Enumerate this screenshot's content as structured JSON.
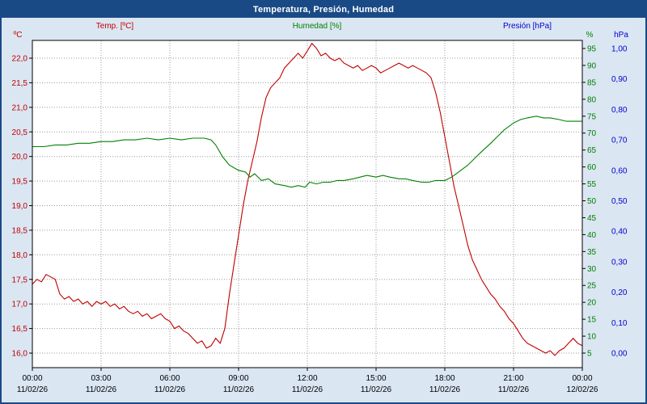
{
  "window": {
    "title": "Temperatura, Presión, Humedad"
  },
  "chart_data": {
    "type": "line",
    "title": "Temperatura, Presión, Humedad",
    "grid": true,
    "legend_position": "top",
    "x_axis": {
      "hours_min": 0,
      "hours_max": 24,
      "tick_step_hours": 3,
      "tick_labels": [
        "00:00",
        "03:00",
        "06:00",
        "09:00",
        "12:00",
        "15:00",
        "18:00",
        "21:00",
        "00:00"
      ],
      "date_labels": [
        "11/02/26",
        "11/02/26",
        "11/02/26",
        "11/02/26",
        "11/02/26",
        "11/02/26",
        "11/02/26",
        "11/02/26",
        "12/02/26"
      ]
    },
    "axes": {
      "temp": {
        "unit": "ºC",
        "legend": "Temp. [ºC]",
        "color": "#c00000",
        "min": 16.0,
        "max": 22.0,
        "step": 0.5,
        "decimals": 1,
        "side": "left"
      },
      "humidity": {
        "unit": "%",
        "legend": "Humedad [%]",
        "color": "#008000",
        "min": 5,
        "max": 95,
        "step": 5,
        "decimals": 0,
        "side": "right"
      },
      "pressure": {
        "unit": "hPa",
        "legend": "Presión [hPa]",
        "color": "#0000cc",
        "min": 0.0,
        "max": 1.0,
        "step": 0.1,
        "decimals": 2,
        "side": "far-right"
      }
    },
    "series": [
      {
        "name": "Temp. [ºC]",
        "axis": "temp",
        "color": "#c00000",
        "points": [
          [
            0,
            17.4
          ],
          [
            0.2,
            17.5
          ],
          [
            0.4,
            17.45
          ],
          [
            0.6,
            17.6
          ],
          [
            0.8,
            17.55
          ],
          [
            1.0,
            17.5
          ],
          [
            1.2,
            17.2
          ],
          [
            1.4,
            17.1
          ],
          [
            1.6,
            17.15
          ],
          [
            1.8,
            17.05
          ],
          [
            2.0,
            17.1
          ],
          [
            2.2,
            17.0
          ],
          [
            2.4,
            17.05
          ],
          [
            2.6,
            16.95
          ],
          [
            2.8,
            17.05
          ],
          [
            3.0,
            17.0
          ],
          [
            3.2,
            17.05
          ],
          [
            3.4,
            16.95
          ],
          [
            3.6,
            17.0
          ],
          [
            3.8,
            16.9
          ],
          [
            4.0,
            16.95
          ],
          [
            4.2,
            16.85
          ],
          [
            4.4,
            16.8
          ],
          [
            4.6,
            16.85
          ],
          [
            4.8,
            16.75
          ],
          [
            5.0,
            16.8
          ],
          [
            5.2,
            16.7
          ],
          [
            5.4,
            16.75
          ],
          [
            5.6,
            16.8
          ],
          [
            5.8,
            16.7
          ],
          [
            6.0,
            16.65
          ],
          [
            6.2,
            16.5
          ],
          [
            6.4,
            16.55
          ],
          [
            6.6,
            16.45
          ],
          [
            6.8,
            16.4
          ],
          [
            7.0,
            16.3
          ],
          [
            7.2,
            16.2
          ],
          [
            7.4,
            16.25
          ],
          [
            7.6,
            16.1
          ],
          [
            7.8,
            16.15
          ],
          [
            8.0,
            16.3
          ],
          [
            8.2,
            16.2
          ],
          [
            8.4,
            16.5
          ],
          [
            8.6,
            17.2
          ],
          [
            8.8,
            17.8
          ],
          [
            9.0,
            18.4
          ],
          [
            9.2,
            19.0
          ],
          [
            9.4,
            19.5
          ],
          [
            9.6,
            19.9
          ],
          [
            9.8,
            20.3
          ],
          [
            10.0,
            20.8
          ],
          [
            10.2,
            21.2
          ],
          [
            10.4,
            21.4
          ],
          [
            10.6,
            21.5
          ],
          [
            10.8,
            21.6
          ],
          [
            11.0,
            21.8
          ],
          [
            11.2,
            21.9
          ],
          [
            11.4,
            22.0
          ],
          [
            11.6,
            22.1
          ],
          [
            11.8,
            22.0
          ],
          [
            12.0,
            22.15
          ],
          [
            12.2,
            22.3
          ],
          [
            12.4,
            22.2
          ],
          [
            12.6,
            22.05
          ],
          [
            12.8,
            22.1
          ],
          [
            13.0,
            22.0
          ],
          [
            13.2,
            21.95
          ],
          [
            13.4,
            22.0
          ],
          [
            13.6,
            21.9
          ],
          [
            13.8,
            21.85
          ],
          [
            14.0,
            21.8
          ],
          [
            14.2,
            21.85
          ],
          [
            14.4,
            21.75
          ],
          [
            14.6,
            21.8
          ],
          [
            14.8,
            21.85
          ],
          [
            15.0,
            21.8
          ],
          [
            15.2,
            21.7
          ],
          [
            15.4,
            21.75
          ],
          [
            15.6,
            21.8
          ],
          [
            15.8,
            21.85
          ],
          [
            16.0,
            21.9
          ],
          [
            16.2,
            21.85
          ],
          [
            16.4,
            21.8
          ],
          [
            16.6,
            21.85
          ],
          [
            16.8,
            21.8
          ],
          [
            17.0,
            21.75
          ],
          [
            17.2,
            21.7
          ],
          [
            17.4,
            21.6
          ],
          [
            17.6,
            21.3
          ],
          [
            17.8,
            20.9
          ],
          [
            18.0,
            20.4
          ],
          [
            18.2,
            19.9
          ],
          [
            18.4,
            19.4
          ],
          [
            18.6,
            19.0
          ],
          [
            18.8,
            18.6
          ],
          [
            19.0,
            18.2
          ],
          [
            19.2,
            17.9
          ],
          [
            19.4,
            17.7
          ],
          [
            19.6,
            17.5
          ],
          [
            19.8,
            17.35
          ],
          [
            20.0,
            17.2
          ],
          [
            20.2,
            17.1
          ],
          [
            20.4,
            16.95
          ],
          [
            20.6,
            16.85
          ],
          [
            20.8,
            16.7
          ],
          [
            21.0,
            16.6
          ],
          [
            21.2,
            16.45
          ],
          [
            21.4,
            16.3
          ],
          [
            21.6,
            16.2
          ],
          [
            21.8,
            16.15
          ],
          [
            22.0,
            16.1
          ],
          [
            22.2,
            16.05
          ],
          [
            22.4,
            16.0
          ],
          [
            22.6,
            16.05
          ],
          [
            22.8,
            15.95
          ],
          [
            23.0,
            16.05
          ],
          [
            23.2,
            16.1
          ],
          [
            23.4,
            16.2
          ],
          [
            23.6,
            16.3
          ],
          [
            23.8,
            16.2
          ],
          [
            24.0,
            16.15
          ]
        ]
      },
      {
        "name": "Humedad [%]",
        "axis": "humidity",
        "color": "#008000",
        "points": [
          [
            0,
            66
          ],
          [
            0.5,
            66
          ],
          [
            1,
            66.5
          ],
          [
            1.5,
            66.5
          ],
          [
            2,
            67
          ],
          [
            2.5,
            67
          ],
          [
            3,
            67.5
          ],
          [
            3.5,
            67.5
          ],
          [
            4,
            68
          ],
          [
            4.5,
            68
          ],
          [
            5,
            68.5
          ],
          [
            5.5,
            68
          ],
          [
            6,
            68.5
          ],
          [
            6.5,
            68
          ],
          [
            7,
            68.5
          ],
          [
            7.5,
            68.5
          ],
          [
            7.8,
            68
          ],
          [
            8.0,
            66.5
          ],
          [
            8.3,
            63
          ],
          [
            8.6,
            60.5
          ],
          [
            9.0,
            59
          ],
          [
            9.3,
            58.5
          ],
          [
            9.5,
            57
          ],
          [
            9.7,
            58
          ],
          [
            10.0,
            56
          ],
          [
            10.3,
            56.5
          ],
          [
            10.6,
            55
          ],
          [
            11.0,
            54.5
          ],
          [
            11.3,
            54
          ],
          [
            11.6,
            54.5
          ],
          [
            11.9,
            54
          ],
          [
            12.1,
            55.5
          ],
          [
            12.4,
            55
          ],
          [
            12.7,
            55.5
          ],
          [
            13.0,
            55.5
          ],
          [
            13.3,
            56
          ],
          [
            13.6,
            56
          ],
          [
            14.0,
            56.5
          ],
          [
            14.3,
            57
          ],
          [
            14.6,
            57.5
          ],
          [
            15.0,
            57
          ],
          [
            15.3,
            57.5
          ],
          [
            15.6,
            57
          ],
          [
            16.0,
            56.5
          ],
          [
            16.3,
            56.5
          ],
          [
            16.6,
            56
          ],
          [
            17.0,
            55.5
          ],
          [
            17.3,
            55.5
          ],
          [
            17.6,
            56
          ],
          [
            18.0,
            56
          ],
          [
            18.3,
            57
          ],
          [
            18.6,
            58.5
          ],
          [
            19.0,
            60.5
          ],
          [
            19.3,
            62.5
          ],
          [
            19.6,
            64.5
          ],
          [
            20.0,
            67
          ],
          [
            20.3,
            69
          ],
          [
            20.6,
            71
          ],
          [
            21.0,
            73
          ],
          [
            21.3,
            74
          ],
          [
            21.6,
            74.5
          ],
          [
            22.0,
            75
          ],
          [
            22.3,
            74.5
          ],
          [
            22.6,
            74.5
          ],
          [
            23.0,
            74
          ],
          [
            23.3,
            73.5
          ],
          [
            23.6,
            73.5
          ],
          [
            24.0,
            73.5
          ]
        ]
      },
      {
        "name": "Presión [hPa]",
        "axis": "pressure",
        "color": "#0000cc",
        "points": []
      }
    ]
  }
}
